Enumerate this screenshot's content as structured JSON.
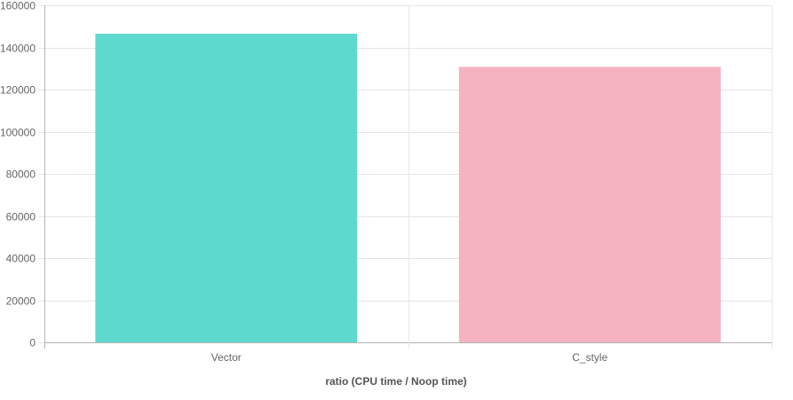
{
  "chart_data": {
    "type": "bar",
    "categories": [
      "Vector",
      "C_style"
    ],
    "values": [
      146500,
      130800
    ],
    "colors": [
      "#5ed9cd",
      "#f5b3c1"
    ],
    "title": "",
    "xlabel": "ratio (CPU time / Noop time)",
    "ylabel": "",
    "ylim": [
      0,
      160000
    ],
    "yticks": [
      0,
      20000,
      40000,
      60000,
      80000,
      100000,
      120000,
      140000,
      160000
    ],
    "grid": true,
    "legend": "none"
  },
  "theme": {
    "grid_color": "#e6e6e6",
    "axis_color": "#b3b3b3",
    "text_color": "#666666",
    "label_color": "#555555"
  }
}
